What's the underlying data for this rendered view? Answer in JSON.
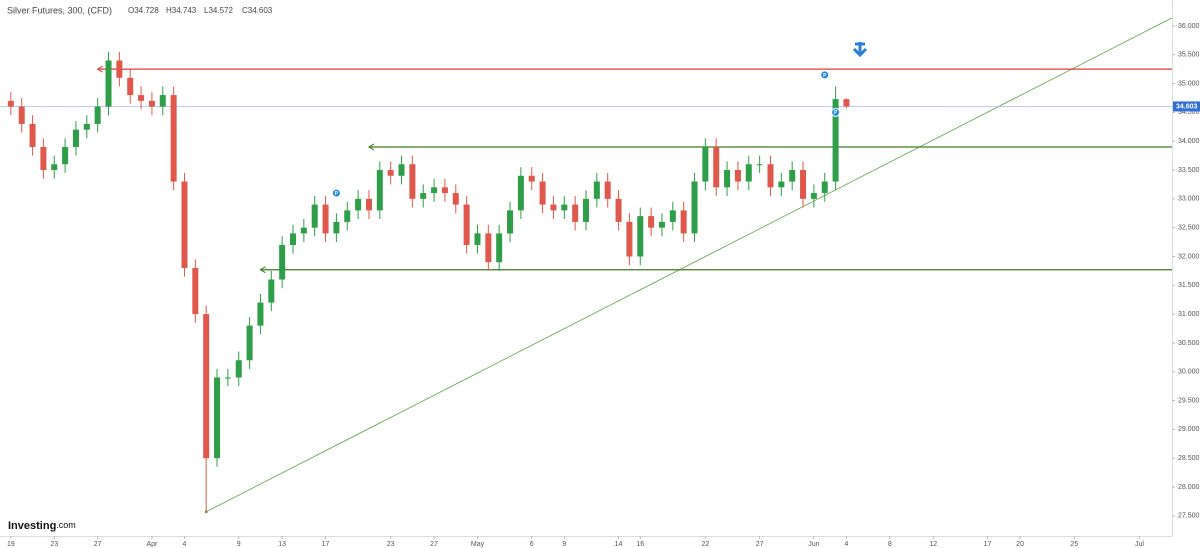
{
  "chart_data": {
    "type": "candlestick",
    "title": "Silver Futures, 300, (CFD)",
    "ohlc_text": [
      "O34.728",
      "H34.743",
      "L34.572",
      "C34.603"
    ],
    "watermark": "Investing",
    "watermark_suffix": ".com",
    "up_color": "#2e9e49",
    "down_color": "#e0584c",
    "x": [
      "03-19",
      "03-20",
      "03-21",
      "03-22",
      "03-23",
      "03-24",
      "03-25",
      "03-26",
      "03-27",
      "03-28",
      "03-29",
      "03-30",
      "03-31",
      "04-01",
      "04-02",
      "04-03",
      "04-04",
      "04-05",
      "04-06",
      "04-07",
      "04-08",
      "04-09",
      "04-10",
      "04-11",
      "04-12",
      "04-13",
      "04-14",
      "04-15",
      "04-16",
      "04-17",
      "04-18",
      "04-19",
      "04-20",
      "04-21",
      "04-22",
      "04-23",
      "04-24",
      "04-25",
      "04-26",
      "04-27",
      "04-28",
      "04-29",
      "04-30",
      "05-01",
      "05-02",
      "05-03",
      "05-04",
      "05-05",
      "05-06",
      "05-07",
      "05-08",
      "05-09",
      "05-10",
      "05-11",
      "05-12",
      "05-13",
      "05-14",
      "05-15",
      "05-16",
      "05-17",
      "05-18",
      "05-19",
      "05-20",
      "05-21",
      "05-22",
      "05-23",
      "05-24",
      "05-25",
      "05-26",
      "05-27",
      "05-28",
      "05-29",
      "05-30",
      "05-31",
      "06-01",
      "06-02",
      "06-03",
      "06-04"
    ],
    "open": [
      34.7,
      34.6,
      34.3,
      33.9,
      33.5,
      33.6,
      33.9,
      34.2,
      34.3,
      34.6,
      35.4,
      35.1,
      34.8,
      34.7,
      34.6,
      34.8,
      33.3,
      31.8,
      31.0,
      28.5,
      29.9,
      29.9,
      30.2,
      30.8,
      31.2,
      31.6,
      32.2,
      32.4,
      32.5,
      32.9,
      32.4,
      32.6,
      32.8,
      33.0,
      32.8,
      33.5,
      33.4,
      33.6,
      33.0,
      33.1,
      33.2,
      33.1,
      32.9,
      32.2,
      32.4,
      31.9,
      32.4,
      32.8,
      33.4,
      33.3,
      32.9,
      32.8,
      32.9,
      32.6,
      33.0,
      33.3,
      33.0,
      32.6,
      32.0,
      32.7,
      32.5,
      32.6,
      32.8,
      32.4,
      33.3,
      33.9,
      33.2,
      33.5,
      33.3,
      33.6,
      33.6,
      33.2,
      33.3,
      33.5,
      33.0,
      33.1,
      33.3,
      34.728
    ],
    "high": [
      34.85,
      34.75,
      34.45,
      34.05,
      33.75,
      34.05,
      34.35,
      34.45,
      34.75,
      35.55,
      35.55,
      35.25,
      34.95,
      34.85,
      34.95,
      34.95,
      33.45,
      31.95,
      31.15,
      30.05,
      30.05,
      30.35,
      30.95,
      31.35,
      31.75,
      32.35,
      32.55,
      32.65,
      33.05,
      33.05,
      32.75,
      32.95,
      33.15,
      33.15,
      33.65,
      33.65,
      33.75,
      33.75,
      33.25,
      33.35,
      33.35,
      33.25,
      33.05,
      32.55,
      32.55,
      32.55,
      32.95,
      33.55,
      33.55,
      33.45,
      33.05,
      33.05,
      33.05,
      33.15,
      33.45,
      33.45,
      33.15,
      32.75,
      32.85,
      32.85,
      32.75,
      32.95,
      32.95,
      33.45,
      34.05,
      34.05,
      33.65,
      33.65,
      33.75,
      33.75,
      33.75,
      33.45,
      33.65,
      33.65,
      33.25,
      33.45,
      34.95,
      34.743
    ],
    "low": [
      34.45,
      34.15,
      33.75,
      33.35,
      33.35,
      33.45,
      33.75,
      34.05,
      34.15,
      34.45,
      34.95,
      34.65,
      34.55,
      34.45,
      34.45,
      33.15,
      31.65,
      30.85,
      27.57,
      28.35,
      29.75,
      29.75,
      30.05,
      30.65,
      31.05,
      31.45,
      32.05,
      32.25,
      32.35,
      32.25,
      32.25,
      32.45,
      32.65,
      32.65,
      32.65,
      33.25,
      33.25,
      32.85,
      32.85,
      32.95,
      32.95,
      32.75,
      32.05,
      32.05,
      31.75,
      31.75,
      32.25,
      32.65,
      33.15,
      32.75,
      32.65,
      32.65,
      32.45,
      32.45,
      32.85,
      32.85,
      32.45,
      31.85,
      31.85,
      32.35,
      32.35,
      32.45,
      32.25,
      32.25,
      33.15,
      33.05,
      33.05,
      33.15,
      33.15,
      33.45,
      33.05,
      33.05,
      33.15,
      32.85,
      32.85,
      32.95,
      33.15,
      34.572
    ],
    "close": [
      34.6,
      34.3,
      33.9,
      33.5,
      33.6,
      33.9,
      34.2,
      34.3,
      34.6,
      35.4,
      35.1,
      34.8,
      34.7,
      34.6,
      34.8,
      33.3,
      31.8,
      31.0,
      28.5,
      29.9,
      29.9,
      30.2,
      30.8,
      31.2,
      31.6,
      32.2,
      32.4,
      32.5,
      32.9,
      32.4,
      32.6,
      32.8,
      33.0,
      32.8,
      33.5,
      33.4,
      33.6,
      33.0,
      33.1,
      33.2,
      33.1,
      32.9,
      32.2,
      32.4,
      31.9,
      32.4,
      32.8,
      33.4,
      33.3,
      32.9,
      32.8,
      32.9,
      32.6,
      33.0,
      33.3,
      33.0,
      32.6,
      32.0,
      32.7,
      32.5,
      32.6,
      32.8,
      32.4,
      33.3,
      33.9,
      33.2,
      33.5,
      33.3,
      33.6,
      33.6,
      33.2,
      33.3,
      33.5,
      33.0,
      33.1,
      33.3,
      34.73,
      34.603
    ],
    "last_price": 34.603,
    "last_price_color": "#2f6fd6",
    "levels": [
      {
        "value": 35.25,
        "from": "03-27",
        "color": "#e53935"
      },
      {
        "value": 33.9,
        "from": "04-21",
        "color": "#3e7d1e"
      },
      {
        "value": 31.77,
        "from": "04-11",
        "color": "#3e7d1e"
      }
    ],
    "trendline": {
      "from": {
        "x": "04-06",
        "y": 27.57
      },
      "to": {
        "x": "07-04",
        "y": 36.14
      },
      "color": "#5ca544"
    },
    "markers": [
      {
        "x": "04-18",
        "y": 33.1,
        "label": "P"
      },
      {
        "x": "06-02",
        "y": 35.15,
        "label": "P"
      },
      {
        "x": "06-03",
        "y": 34.5,
        "label": "P"
      }
    ],
    "xlim": [
      "03-18",
      "07-04"
    ],
    "xticks": [
      {
        "value": "03-19",
        "label": "19"
      },
      {
        "value": "03-23",
        "label": "23"
      },
      {
        "value": "03-27",
        "label": "27"
      },
      {
        "value": "04-01",
        "label": "Apr"
      },
      {
        "value": "04-04",
        "label": "4"
      },
      {
        "value": "04-09",
        "label": "9"
      },
      {
        "value": "04-13",
        "label": "13"
      },
      {
        "value": "04-17",
        "label": "17"
      },
      {
        "value": "04-23",
        "label": "23"
      },
      {
        "value": "04-27",
        "label": "27"
      },
      {
        "value": "05-01",
        "label": "May"
      },
      {
        "value": "05-06",
        "label": "6"
      },
      {
        "value": "05-09",
        "label": "9"
      },
      {
        "value": "05-14",
        "label": "14"
      },
      {
        "value": "05-16",
        "label": "16"
      },
      {
        "value": "05-22",
        "label": "22"
      },
      {
        "value": "05-27",
        "label": "27"
      },
      {
        "value": "06-01",
        "label": "Jun"
      },
      {
        "value": "06-04",
        "label": "4"
      },
      {
        "value": "06-08",
        "label": "8"
      },
      {
        "value": "06-12",
        "label": "12"
      },
      {
        "value": "06-17",
        "label": "17"
      },
      {
        "value": "06-20",
        "label": "20"
      },
      {
        "value": "06-25",
        "label": "25"
      },
      {
        "value": "07-01",
        "label": "Jul"
      }
    ],
    "ylim": [
      27.15,
      36.45
    ],
    "yticks": [
      {
        "value": 27.5,
        "label": "27.500"
      },
      {
        "value": 28,
        "label": "28.000"
      },
      {
        "value": 28.5,
        "label": "28.500"
      },
      {
        "value": 29,
        "label": "29.000"
      },
      {
        "value": 29.5,
        "label": "29.500"
      },
      {
        "value": 30,
        "label": "30.000"
      },
      {
        "value": 30.5,
        "label": "30.500"
      },
      {
        "value": 31,
        "label": "31.000"
      },
      {
        "value": 31.5,
        "label": "31.500"
      },
      {
        "value": 32,
        "label": "32.000"
      },
      {
        "value": 32.5,
        "label": "32.500"
      },
      {
        "value": 33,
        "label": "33.000"
      },
      {
        "value": 33.5,
        "label": "33.500"
      },
      {
        "value": 34,
        "label": "34.000"
      },
      {
        "value": 34.5,
        "label": "34.500"
      },
      {
        "value": 35,
        "label": "35.000"
      },
      {
        "value": 35.5,
        "label": "35.500"
      },
      {
        "value": 36,
        "label": "36.000"
      }
    ]
  }
}
